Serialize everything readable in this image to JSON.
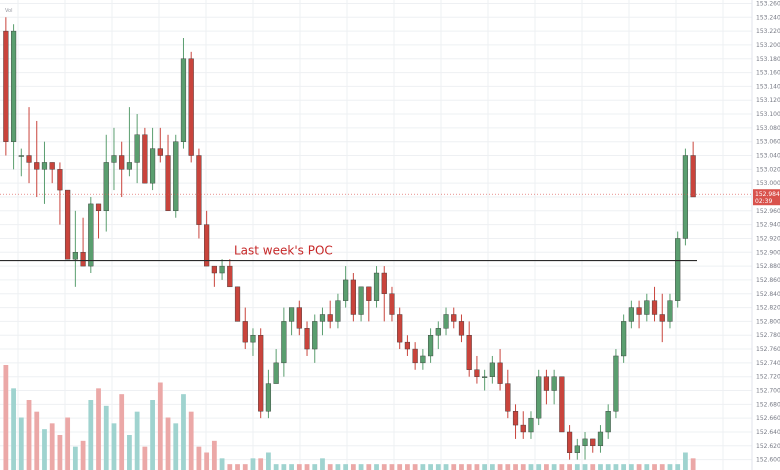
{
  "chart_data": {
    "type": "candlestick",
    "y_axis_side": "right",
    "ylim": [
      152.585,
      153.265
    ],
    "y_ticks": [
      "153.260",
      "153.240",
      "153.220",
      "153.200",
      "153.180",
      "153.160",
      "153.140",
      "153.120",
      "153.100",
      "153.080",
      "153.060",
      "153.040",
      "153.020",
      "153.000",
      "152.980",
      "152.960",
      "152.940",
      "152.920",
      "152.900",
      "152.880",
      "152.860",
      "152.840",
      "152.820",
      "152.800",
      "152.780",
      "152.760",
      "152.740",
      "152.720",
      "152.700",
      "152.680",
      "152.660",
      "152.640",
      "152.620",
      "152.600"
    ],
    "grid": true,
    "volume_label": "Vol",
    "colors": {
      "up": "#5a9e6f",
      "down": "#c9443c",
      "vol_up": "#9fd3cf",
      "vol_down": "#eba8a7",
      "poc": "#2b2b2b",
      "annotation": "#c62828",
      "price_tag": "#d9524c"
    },
    "annotations": [
      {
        "text": "Last week's POC",
        "price": 152.888
      }
    ],
    "poc_line": {
      "price": 152.888
    },
    "current_price": {
      "value": "152.984",
      "countdown": "02:39",
      "price": 152.984
    },
    "candles": [
      [
        153.22,
        153.24,
        153.04,
        153.06
      ],
      [
        153.06,
        153.23,
        153.02,
        153.22
      ],
      [
        153.04,
        153.05,
        153.01,
        153.04
      ],
      [
        153.04,
        153.11,
        153.0,
        153.03
      ],
      [
        153.03,
        153.09,
        152.98,
        153.02
      ],
      [
        153.02,
        153.06,
        152.97,
        153.03
      ],
      [
        153.03,
        153.03,
        153.0,
        153.02
      ],
      [
        153.02,
        153.03,
        152.94,
        152.99
      ],
      [
        152.99,
        152.99,
        152.89,
        152.89
      ],
      [
        152.89,
        152.96,
        152.85,
        152.9
      ],
      [
        152.9,
        152.95,
        152.88,
        152.88
      ],
      [
        152.88,
        152.98,
        152.87,
        152.97
      ],
      [
        152.97,
        152.97,
        152.92,
        152.96
      ],
      [
        152.96,
        153.07,
        152.93,
        153.03
      ],
      [
        153.03,
        153.08,
        152.99,
        153.04
      ],
      [
        153.04,
        153.06,
        152.98,
        153.02
      ],
      [
        153.02,
        153.11,
        153.01,
        153.03
      ],
      [
        153.03,
        153.1,
        153.0,
        153.07
      ],
      [
        153.07,
        153.08,
        153.0,
        153.0
      ],
      [
        153.0,
        153.08,
        152.99,
        153.05
      ],
      [
        153.05,
        153.08,
        153.03,
        153.04
      ],
      [
        153.04,
        153.07,
        152.96,
        152.96
      ],
      [
        152.96,
        153.07,
        152.95,
        153.06
      ],
      [
        153.06,
        153.21,
        153.05,
        153.18
      ],
      [
        153.18,
        153.19,
        153.03,
        153.04
      ],
      [
        153.04,
        153.05,
        152.92,
        152.94
      ],
      [
        152.94,
        152.96,
        152.88,
        152.88
      ],
      [
        152.88,
        152.88,
        152.85,
        152.87
      ],
      [
        152.87,
        152.89,
        152.86,
        152.88
      ],
      [
        152.88,
        152.89,
        152.85,
        152.85
      ],
      [
        152.85,
        152.85,
        152.8,
        152.8
      ],
      [
        152.8,
        152.82,
        152.76,
        152.77
      ],
      [
        152.77,
        152.79,
        152.75,
        152.78
      ],
      [
        152.78,
        152.79,
        152.66,
        152.67
      ],
      [
        152.67,
        152.73,
        152.66,
        152.71
      ],
      [
        152.71,
        152.76,
        152.71,
        152.74
      ],
      [
        152.74,
        152.82,
        152.72,
        152.8
      ],
      [
        152.8,
        152.82,
        152.78,
        152.82
      ],
      [
        152.82,
        152.83,
        152.78,
        152.79
      ],
      [
        152.79,
        152.8,
        152.75,
        152.76
      ],
      [
        152.76,
        152.81,
        152.74,
        152.8
      ],
      [
        152.8,
        152.82,
        152.78,
        152.81
      ],
      [
        152.81,
        152.83,
        152.79,
        152.8
      ],
      [
        152.8,
        152.84,
        152.79,
        152.83
      ],
      [
        152.83,
        152.88,
        152.82,
        152.86
      ],
      [
        152.86,
        152.87,
        152.8,
        152.81
      ],
      [
        152.81,
        152.85,
        152.8,
        152.85
      ],
      [
        152.85,
        152.85,
        152.8,
        152.83
      ],
      [
        152.83,
        152.88,
        152.82,
        152.87
      ],
      [
        152.87,
        152.88,
        152.8,
        152.84
      ],
      [
        152.84,
        152.85,
        152.8,
        152.81
      ],
      [
        152.81,
        152.82,
        152.76,
        152.77
      ],
      [
        152.77,
        152.78,
        152.75,
        152.76
      ],
      [
        152.76,
        152.77,
        152.73,
        152.74
      ],
      [
        152.74,
        152.76,
        152.73,
        152.75
      ],
      [
        152.75,
        152.79,
        152.74,
        152.78
      ],
      [
        152.78,
        152.8,
        152.76,
        152.79
      ],
      [
        152.79,
        152.82,
        152.78,
        152.81
      ],
      [
        152.81,
        152.82,
        152.79,
        152.8
      ],
      [
        152.8,
        152.81,
        152.77,
        152.78
      ],
      [
        152.78,
        152.8,
        152.72,
        152.73
      ],
      [
        152.73,
        152.75,
        152.71,
        152.72
      ],
      [
        152.72,
        152.73,
        152.7,
        152.72
      ],
      [
        152.72,
        152.75,
        152.71,
        152.74
      ],
      [
        152.74,
        152.76,
        152.7,
        152.71
      ],
      [
        152.71,
        152.73,
        152.66,
        152.67
      ],
      [
        152.67,
        152.68,
        152.63,
        152.65
      ],
      [
        152.65,
        152.67,
        152.63,
        152.64
      ],
      [
        152.64,
        152.67,
        152.63,
        152.66
      ],
      [
        152.66,
        152.73,
        152.65,
        152.72
      ],
      [
        152.72,
        152.73,
        152.68,
        152.7
      ],
      [
        152.7,
        152.73,
        152.68,
        152.72
      ],
      [
        152.72,
        152.72,
        152.64,
        152.64
      ],
      [
        152.64,
        152.65,
        152.6,
        152.61
      ],
      [
        152.61,
        152.63,
        152.6,
        152.62
      ],
      [
        152.62,
        152.64,
        152.6,
        152.63
      ],
      [
        152.63,
        152.63,
        152.61,
        152.62
      ],
      [
        152.62,
        152.65,
        152.61,
        152.64
      ],
      [
        152.64,
        152.68,
        152.63,
        152.67
      ],
      [
        152.67,
        152.76,
        152.66,
        152.75
      ],
      [
        152.75,
        152.81,
        152.74,
        152.8
      ],
      [
        152.8,
        152.83,
        152.79,
        152.82
      ],
      [
        152.82,
        152.83,
        152.79,
        152.81
      ],
      [
        152.81,
        152.84,
        152.8,
        152.83
      ],
      [
        152.83,
        152.85,
        152.8,
        152.81
      ],
      [
        152.81,
        152.84,
        152.77,
        152.8
      ],
      [
        152.8,
        152.84,
        152.79,
        152.83
      ],
      [
        152.83,
        152.93,
        152.82,
        152.92
      ],
      [
        152.92,
        153.05,
        152.91,
        153.04
      ],
      [
        153.04,
        153.06,
        152.98,
        152.98
      ]
    ],
    "volume": [
      18,
      14,
      9,
      12,
      10,
      7,
      8,
      6,
      9,
      4,
      5,
      12,
      14,
      11,
      8,
      13,
      6,
      10,
      4,
      12,
      15,
      9,
      8,
      13,
      10,
      4,
      3,
      5,
      2,
      1,
      1,
      1,
      2,
      2,
      3,
      1,
      1,
      1,
      1,
      1,
      1,
      2,
      1,
      1,
      1,
      1,
      1,
      1,
      1,
      1,
      1,
      1,
      1,
      1,
      1,
      1,
      1,
      1,
      1,
      1,
      1,
      1,
      1,
      1,
      1,
      1,
      1,
      1,
      1,
      1,
      1,
      1,
      1,
      1,
      1,
      1,
      1,
      1,
      1,
      1,
      1,
      1,
      1,
      1,
      1,
      1,
      1,
      1,
      3,
      2
    ]
  }
}
